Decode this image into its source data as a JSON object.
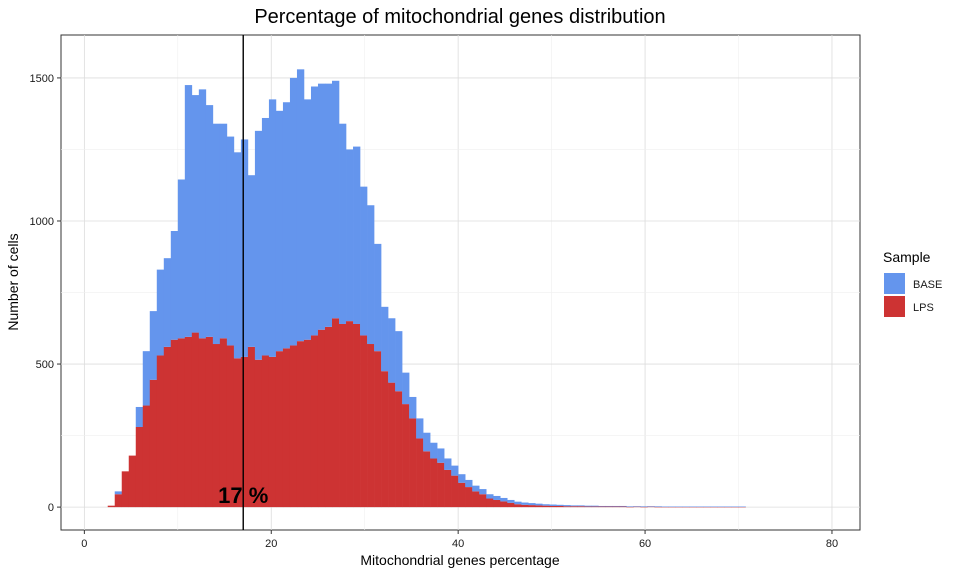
{
  "chart_data": {
    "type": "bar",
    "subtype": "stacked-histogram",
    "title": "Percentage of mitochondrial genes distribution",
    "xlabel": "Mitochondrial genes percentage",
    "ylabel": "Number of cells",
    "xlim": [
      -2.5,
      83
    ],
    "ylim": [
      -80,
      1650
    ],
    "x_ticks": [
      0,
      20,
      40,
      60,
      80
    ],
    "y_ticks": [
      0,
      500,
      1000,
      1500
    ],
    "grid": true,
    "bin_width": 0.75,
    "bins_x": [
      2.5,
      3.25,
      4,
      4.75,
      5.5,
      6.25,
      7,
      7.75,
      8.5,
      9.25,
      10,
      10.75,
      11.5,
      12.25,
      13,
      13.75,
      14.5,
      15.25,
      16,
      16.75,
      17.5,
      18.25,
      19,
      19.75,
      20.5,
      21.25,
      22,
      22.75,
      23.5,
      24.25,
      25,
      25.75,
      26.5,
      27.25,
      28,
      28.75,
      29.5,
      30.25,
      31,
      31.75,
      32.5,
      33.25,
      34,
      34.75,
      35.5,
      36.25,
      37,
      37.75,
      38.5,
      39.25,
      40,
      40.75,
      41.5,
      42.25,
      43,
      43.75,
      44.5,
      45.25,
      46,
      46.75,
      47.5,
      48.25,
      49,
      49.75,
      50.5,
      51.25,
      52,
      52.75,
      53.5,
      54.25,
      55,
      55.75,
      56.5,
      57.25,
      58,
      58.75,
      59.5,
      60.25,
      61,
      61.75,
      62.5,
      63.25,
      64,
      64.75,
      65.5,
      66.25,
      67,
      67.75,
      68.5,
      69.25,
      70
    ],
    "series": [
      {
        "name": "LPS",
        "color": "#cd3333",
        "values": [
          5,
          45,
          125,
          180,
          280,
          355,
          445,
          530,
          560,
          585,
          590,
          595,
          610,
          590,
          595,
          570,
          590,
          565,
          520,
          525,
          560,
          515,
          530,
          525,
          545,
          555,
          565,
          580,
          585,
          600,
          620,
          630,
          660,
          640,
          650,
          640,
          600,
          570,
          545,
          475,
          435,
          405,
          360,
          310,
          240,
          195,
          170,
          155,
          130,
          110,
          85,
          70,
          55,
          45,
          30,
          25,
          20,
          15,
          10,
          8,
          7,
          6,
          5,
          4,
          4,
          3,
          3,
          3,
          2,
          2,
          2,
          2,
          2,
          2,
          1,
          2,
          1,
          2,
          1,
          1,
          1,
          1,
          1,
          1,
          1,
          1,
          1,
          1,
          1,
          1,
          1
        ]
      },
      {
        "name": "BASE",
        "color": "#6495ed",
        "values": [
          0,
          10,
          0,
          0,
          70,
          190,
          240,
          300,
          310,
          380,
          555,
          880,
          830,
          870,
          810,
          770,
          750,
          730,
          720,
          760,
          600,
          800,
          830,
          900,
          840,
          860,
          935,
          950,
          840,
          870,
          860,
          850,
          830,
          700,
          600,
          620,
          520,
          485,
          375,
          225,
          225,
          210,
          110,
          75,
          70,
          65,
          55,
          50,
          40,
          35,
          30,
          25,
          20,
          18,
          15,
          14,
          12,
          10,
          9,
          8,
          7,
          6,
          5,
          5,
          4,
          4,
          3,
          3,
          3,
          3,
          2,
          2,
          2,
          2,
          2,
          1,
          2,
          1,
          2,
          1,
          1,
          1,
          1,
          1,
          1,
          1,
          1,
          1,
          1,
          1,
          1
        ]
      }
    ],
    "vline": {
      "x": 17,
      "label": "17 %"
    },
    "legend": {
      "title": "Sample",
      "position": "right",
      "entries": [
        "BASE",
        "LPS"
      ]
    }
  }
}
